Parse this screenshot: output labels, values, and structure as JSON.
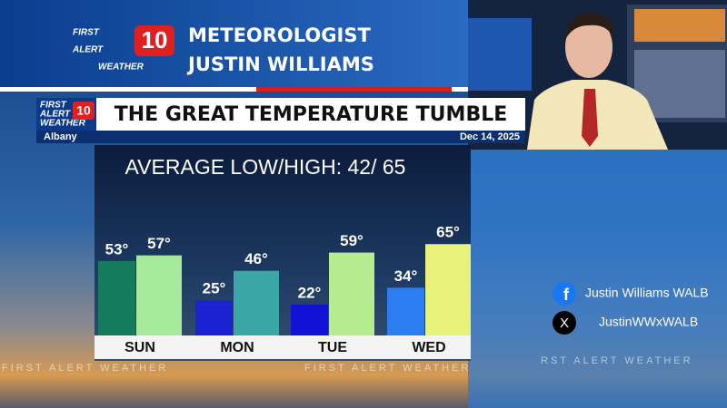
{
  "header": {
    "logo": [
      "FIRST",
      "ALERT",
      "WEATHER"
    ],
    "logo_number": "10",
    "role": "METEOROLOGIST",
    "name": "JUSTIN WILLIAMS"
  },
  "graphic": {
    "title": "THE GREAT TEMPERATURE TUMBLE",
    "location": "Albany",
    "date": "Dec 14, 2025"
  },
  "chart_data": {
    "type": "bar",
    "title": "AVERAGE LOW/HIGH: 42/ 65",
    "categories": [
      "SUN",
      "MON",
      "TUE",
      "WED"
    ],
    "series": [
      {
        "values": [
          53,
          25,
          22,
          34
        ],
        "value_labels": [
          "53°",
          "25°",
          "22°",
          "34°"
        ],
        "colors": [
          "#167a5c",
          "#1a22d4",
          "#1212d6",
          "#2b7ef0"
        ]
      },
      {
        "values": [
          57,
          46,
          59,
          65
        ],
        "value_labels": [
          "57°",
          "46°",
          "59°",
          "65°"
        ],
        "colors": [
          "#a6e89c",
          "#3aa6a6",
          "#b6ec90",
          "#e8f27a"
        ]
      }
    ]
  },
  "social": {
    "facebook": "Justin Williams WALB",
    "x": "JustinWWxWALB"
  },
  "ticker": [
    "FIRST ALERT WEATHER",
    "FIRST ALERT WEATHER",
    "RST ALERT WEATHER"
  ]
}
